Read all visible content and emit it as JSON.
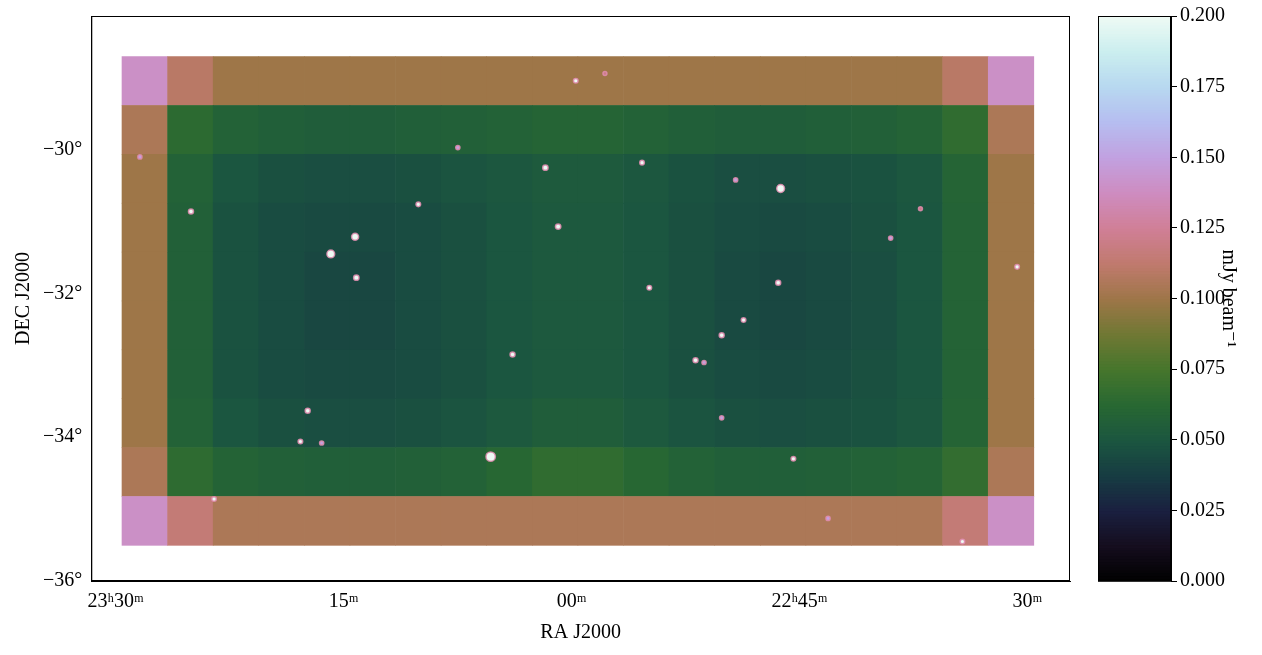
{
  "chart_data": {
    "type": "heatmap",
    "x_label": "RA J2000",
    "y_label": "DEC J2000",
    "xlim": [
      352.9,
      336.8
    ],
    "ylim": [
      -36,
      -28.14
    ],
    "xticks": [
      {
        "value": 352.5,
        "label": "23ʰ30ᵐ"
      },
      {
        "value": 348.75,
        "label": "15ᵐ"
      },
      {
        "value": 345,
        "label": "00ᵐ"
      },
      {
        "value": 341.25,
        "label": "22ʰ45ᵐ"
      },
      {
        "value": 337.5,
        "label": "30ᵐ"
      }
    ],
    "yticks": [
      {
        "value": -36,
        "label": "−36°"
      },
      {
        "value": -34,
        "label": "−34°"
      },
      {
        "value": -32,
        "label": "−32°"
      },
      {
        "value": -30,
        "label": "−30°"
      }
    ],
    "grid": false,
    "x": [
      352.025,
      351.275,
      350.525,
      349.775,
      349.025,
      348.275,
      347.525,
      346.775,
      346.025,
      345.275,
      344.525,
      343.775,
      343.025,
      342.275,
      341.525,
      340.775,
      340.025,
      339.275,
      338.525,
      337.775
    ],
    "y": [
      -29.04,
      -29.72,
      -30.4,
      -31.08,
      -31.76,
      -32.44,
      -33.12,
      -33.8,
      -34.48,
      -35.16
    ],
    "cells": [
      [
        0.14,
        0.11,
        0.1,
        0.1,
        0.1,
        0.1,
        0.1,
        0.1,
        0.1,
        0.1,
        0.1,
        0.1,
        0.1,
        0.1,
        0.1,
        0.1,
        0.1,
        0.1,
        0.11,
        0.14
      ],
      [
        0.105,
        0.064,
        0.058,
        0.056,
        0.055,
        0.055,
        0.056,
        0.057,
        0.058,
        0.06,
        0.06,
        0.058,
        0.056,
        0.055,
        0.055,
        0.056,
        0.057,
        0.059,
        0.066,
        0.105
      ],
      [
        0.1,
        0.058,
        0.05,
        0.047,
        0.046,
        0.046,
        0.047,
        0.049,
        0.051,
        0.053,
        0.053,
        0.051,
        0.048,
        0.046,
        0.046,
        0.047,
        0.048,
        0.051,
        0.06,
        0.1
      ],
      [
        0.1,
        0.057,
        0.048,
        0.045,
        0.044,
        0.044,
        0.045,
        0.047,
        0.05,
        0.052,
        0.052,
        0.05,
        0.047,
        0.045,
        0.044,
        0.045,
        0.047,
        0.05,
        0.059,
        0.1
      ],
      [
        0.1,
        0.057,
        0.048,
        0.045,
        0.043,
        0.043,
        0.045,
        0.047,
        0.05,
        0.052,
        0.052,
        0.05,
        0.047,
        0.044,
        0.043,
        0.044,
        0.046,
        0.05,
        0.059,
        0.1
      ],
      [
        0.1,
        0.057,
        0.048,
        0.045,
        0.043,
        0.043,
        0.045,
        0.047,
        0.05,
        0.052,
        0.052,
        0.05,
        0.047,
        0.044,
        0.043,
        0.044,
        0.046,
        0.05,
        0.059,
        0.1
      ],
      [
        0.1,
        0.057,
        0.048,
        0.045,
        0.044,
        0.044,
        0.045,
        0.047,
        0.05,
        0.052,
        0.052,
        0.05,
        0.047,
        0.045,
        0.044,
        0.045,
        0.047,
        0.05,
        0.059,
        0.1
      ],
      [
        0.1,
        0.058,
        0.05,
        0.047,
        0.046,
        0.046,
        0.047,
        0.049,
        0.052,
        0.055,
        0.055,
        0.052,
        0.049,
        0.047,
        0.046,
        0.047,
        0.048,
        0.051,
        0.06,
        0.1
      ],
      [
        0.105,
        0.065,
        0.059,
        0.057,
        0.056,
        0.056,
        0.057,
        0.058,
        0.062,
        0.066,
        0.066,
        0.062,
        0.058,
        0.056,
        0.056,
        0.057,
        0.058,
        0.06,
        0.067,
        0.105
      ],
      [
        0.14,
        0.115,
        0.105,
        0.105,
        0.105,
        0.105,
        0.105,
        0.105,
        0.105,
        0.105,
        0.105,
        0.105,
        0.105,
        0.105,
        0.105,
        0.105,
        0.105,
        0.105,
        0.115,
        0.14
      ]
    ],
    "sources": {
      "x": [
        352.1,
        351.26,
        348.96,
        348.56,
        348.54,
        347.52,
        349.34,
        349.46,
        349.11,
        346.87,
        345.43,
        345.22,
        345.97,
        346.33,
        344.93,
        344.45,
        343.84,
        343.72,
        342.96,
        342.82,
        342.53,
        342.17,
        342.3,
        341.56,
        341.6,
        341.35,
        342.53,
        339.75,
        337.67,
        339.26,
        350.88,
        338.57,
        340.78
      ],
      "y": [
        -30.1,
        -30.86,
        -31.45,
        -31.21,
        -31.78,
        -30.76,
        -33.63,
        -34.06,
        -34.08,
        -29.97,
        -30.25,
        -31.07,
        -32.85,
        -34.27,
        -29.04,
        -28.94,
        -30.18,
        -31.92,
        -32.93,
        -32.96,
        -32.58,
        -32.37,
        -30.42,
        -30.54,
        -31.85,
        -34.3,
        -33.73,
        -31.23,
        -31.63,
        -30.82,
        -34.86,
        -35.45,
        -35.13
      ],
      "values": [
        0.15,
        0.25,
        0.6,
        0.5,
        0.3,
        0.2,
        0.25,
        0.2,
        0.15,
        0.15,
        0.3,
        0.3,
        0.25,
        0.8,
        0.2,
        0.12,
        0.2,
        0.2,
        0.25,
        0.15,
        0.25,
        0.2,
        0.15,
        0.6,
        0.25,
        0.2,
        0.15,
        0.15,
        0.2,
        0.12,
        0.2,
        0.2,
        0.15
      ]
    },
    "colorbar": {
      "label": "mJy beam⁻¹",
      "range": [
        0,
        0.2
      ],
      "ticks": [
        {
          "value": 0,
          "label": "0.000"
        },
        {
          "value": 0.025,
          "label": "0.025"
        },
        {
          "value": 0.05,
          "label": "0.050"
        },
        {
          "value": 0.075,
          "label": "0.075"
        },
        {
          "value": 0.1,
          "label": "0.100"
        },
        {
          "value": 0.125,
          "label": "0.125"
        },
        {
          "value": 0.15,
          "label": "0.150"
        },
        {
          "value": 0.175,
          "label": "0.175"
        },
        {
          "value": 0.2,
          "label": "0.200"
        }
      ]
    }
  }
}
